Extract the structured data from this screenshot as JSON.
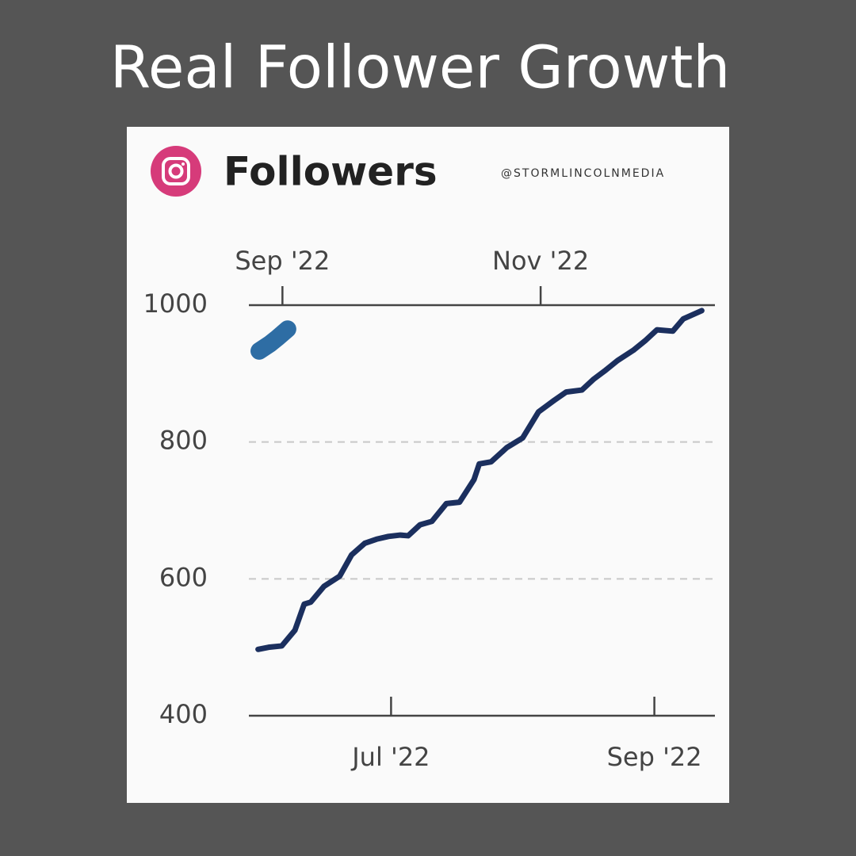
{
  "heading": "Real Follower Growth",
  "handle": "@STORMLINCOLNMEDIA",
  "chart_data": {
    "type": "line",
    "title": "Followers",
    "ylim": [
      400,
      1000
    ],
    "yticks": [
      400,
      600,
      800,
      1000
    ],
    "grid": true,
    "xlim": [
      5.92,
      9.46
    ],
    "xticks": [
      {
        "value": 7,
        "label": "Jul '22"
      },
      {
        "value": 9,
        "label": "Sep '22"
      }
    ],
    "x2lim": [
      8.74,
      12.35
    ],
    "x2ticks": [
      {
        "value": 9,
        "label": "Sep '22"
      },
      {
        "value": 11,
        "label": "Nov '22"
      }
    ],
    "series": [
      {
        "color": "#1b2f5e",
        "x": [
          5.99,
          6.07,
          6.17,
          6.27,
          6.34,
          6.39,
          6.49,
          6.61,
          6.7,
          6.8,
          6.89,
          6.98,
          7.07,
          7.13,
          7.22,
          7.31,
          7.42,
          7.52,
          7.63,
          7.67,
          7.76,
          7.88,
          8.0,
          8.12,
          8.24,
          8.33,
          8.45,
          8.54,
          8.63,
          8.72,
          8.84,
          8.93,
          9.02,
          9.14,
          9.22,
          9.36
        ],
        "values": [
          497,
          500,
          502,
          525,
          563,
          566,
          589,
          604,
          635,
          652,
          658,
          662,
          664,
          663,
          679,
          684,
          710,
          712,
          745,
          768,
          771,
          792,
          806,
          844,
          861,
          873,
          876,
          892,
          905,
          919,
          934,
          948,
          964,
          962,
          980,
          992
        ]
      },
      {
        "color": "#2e6da4",
        "axis": "x2",
        "x": [
          8.82,
          8.9,
          8.96,
          9.04
        ],
        "values": [
          933,
          943,
          952,
          965
        ]
      }
    ]
  }
}
